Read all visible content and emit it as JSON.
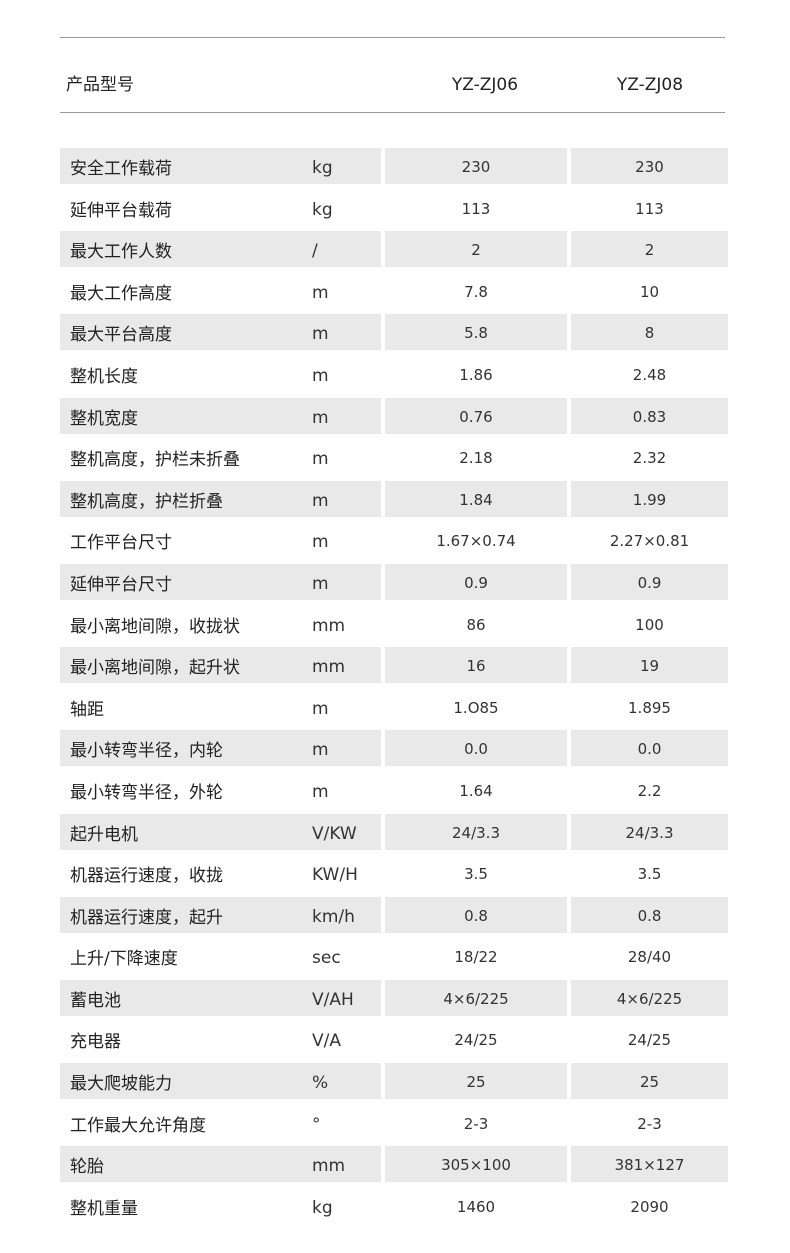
{
  "header": {
    "label": "产品型号",
    "models": [
      "YZ-ZJ06",
      "YZ-ZJ08"
    ]
  },
  "rows": [
    {
      "label": "安全工作载荷",
      "unit": "kg",
      "v1": "230",
      "v2": "230"
    },
    {
      "label": "延伸平台载荷",
      "unit": "kg",
      "v1": "113",
      "v2": "113"
    },
    {
      "label": "最大工作人数",
      "unit": "/",
      "v1": "2",
      "v2": "2"
    },
    {
      "label": "最大工作高度",
      "unit": "m",
      "v1": "7.8",
      "v2": "10"
    },
    {
      "label": "最大平台高度",
      "unit": "m",
      "v1": "5.8",
      "v2": "8"
    },
    {
      "label": "整机长度",
      "unit": "m",
      "v1": "1.86",
      "v2": "2.48"
    },
    {
      "label": "整机宽度",
      "unit": "m",
      "v1": "0.76",
      "v2": "0.83"
    },
    {
      "label": "整机高度，护栏未折叠",
      "unit": "m",
      "v1": "2.18",
      "v2": "2.32"
    },
    {
      "label": "整机高度，护栏折叠",
      "unit": "m",
      "v1": "1.84",
      "v2": "1.99"
    },
    {
      "label": "工作平台尺寸",
      "unit": "m",
      "v1": "1.67×0.74",
      "v2": "2.27×0.81"
    },
    {
      "label": "延伸平台尺寸",
      "unit": "m",
      "v1": "0.9",
      "v2": "0.9"
    },
    {
      "label": "最小离地间隙，收拢状",
      "unit": "mm",
      "v1": "86",
      "v2": "100"
    },
    {
      "label": "最小离地间隙，起升状",
      "unit": "mm",
      "v1": "16",
      "v2": "19"
    },
    {
      "label": "轴距",
      "unit": "m",
      "v1": "1.O85",
      "v2": "1.895"
    },
    {
      "label": "最小转弯半径，内轮",
      "unit": "m",
      "v1": "0.0",
      "v2": "0.0"
    },
    {
      "label": "最小转弯半径，外轮",
      "unit": "m",
      "v1": "1.64",
      "v2": "2.2"
    },
    {
      "label": "起升电机",
      "unit": "V/KW",
      "v1": "24/3.3",
      "v2": "24/3.3"
    },
    {
      "label": "机器运行速度，收拢",
      "unit": "KW/H",
      "v1": "3.5",
      "v2": "3.5"
    },
    {
      "label": "机器运行速度，起升",
      "unit": "km/h",
      "v1": "0.8",
      "v2": "0.8"
    },
    {
      "label": "上升/下降速度",
      "unit": "sec",
      "v1": "18/22",
      "v2": "28/40"
    },
    {
      "label": "蓄电池",
      "unit": "V/AH",
      "v1": "4×6/225",
      "v2": "4×6/225"
    },
    {
      "label": "充电器",
      "unit": "V/A",
      "v1": "24/25",
      "v2": "24/25"
    },
    {
      "label": "最大爬坡能力",
      "unit": "%",
      "v1": "25",
      "v2": "25"
    },
    {
      "label": "工作最大允许角度",
      "unit": "°",
      "v1": "2-3",
      "v2": "2-3"
    },
    {
      "label": "轮胎",
      "unit": "mm",
      "v1": "305×100",
      "v2": "381×127"
    },
    {
      "label": "整机重量",
      "unit": "kg",
      "v1": "1460",
      "v2": "2090"
    }
  ]
}
